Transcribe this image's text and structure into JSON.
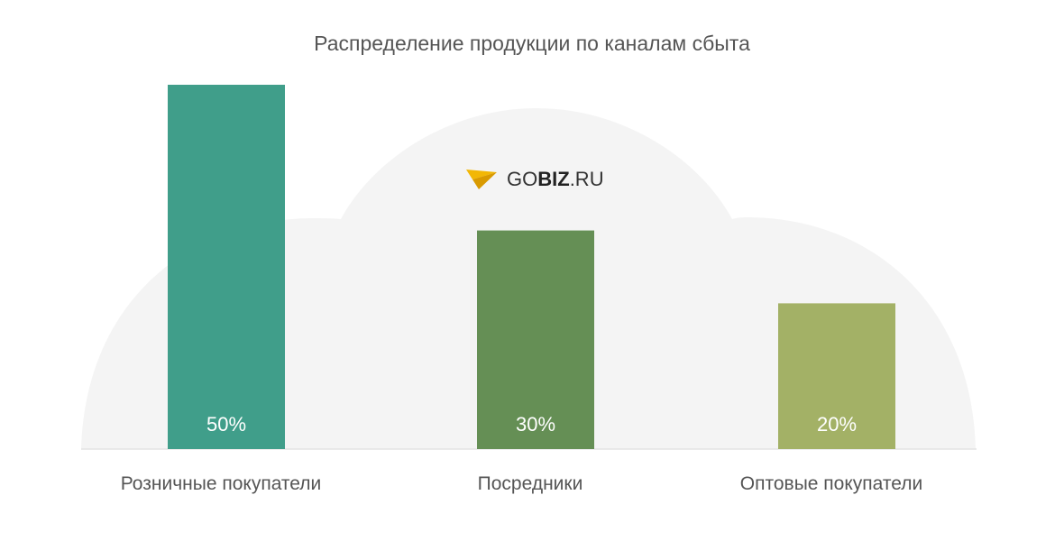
{
  "chart_data": {
    "type": "bar",
    "title": "Распределение продукции по каналам сбыта",
    "categories": [
      "Розничные покупатели",
      "Посредники",
      "Оптовые покупатели"
    ],
    "values": [
      50,
      30,
      20
    ],
    "value_labels": [
      "50%",
      "30%",
      "20%"
    ],
    "unit": "%",
    "ylim": [
      0,
      50
    ],
    "colors": [
      "#409e8a",
      "#658f55",
      "#a3b166"
    ],
    "grid": false,
    "legend": "none",
    "xlabel": "",
    "ylabel": ""
  },
  "watermark": {
    "text_prefix": "GO",
    "text_strong": "BIZ",
    "text_suffix": ".RU",
    "icon": "paper-plane-icon",
    "icon_color": "#f2b705",
    "cloud_color": "#f4f4f4"
  }
}
